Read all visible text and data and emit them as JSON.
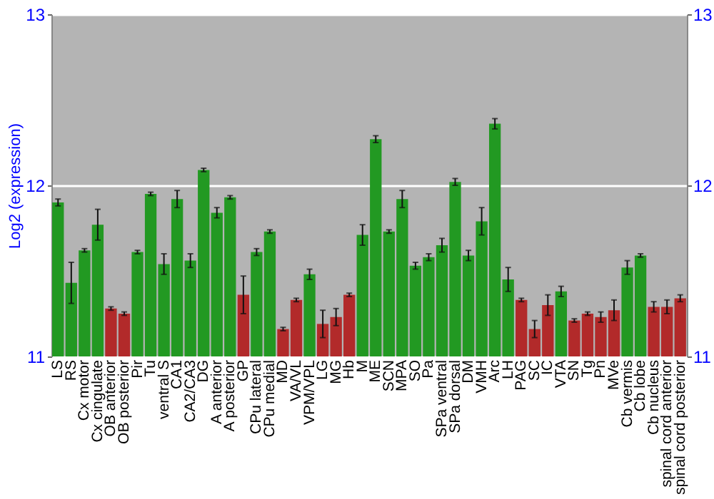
{
  "chart_data": {
    "type": "bar",
    "ylabel": "Log2 (expression)",
    "categories": [
      "LS",
      "RS",
      "Cx motor",
      "Cx cingulate",
      "OB anterior",
      "OB posterior",
      "Pir",
      "Tu",
      "ventral S",
      "CA1",
      "CA2/CA3",
      "DG",
      "A anterior",
      "A posterior",
      "GP",
      "CPu lateral",
      "CPu medial",
      "MD",
      "VA/VL",
      "VPM/VPL",
      "LG",
      "MG",
      "Hb",
      "M",
      "ME",
      "SCN",
      "MPA",
      "SO",
      "Pa",
      "SPa ventral",
      "SPa dorsal",
      "DM",
      "VMH",
      "Arc",
      "LH",
      "PAG",
      "SC",
      "IC",
      "VTA",
      "SN",
      "Tg",
      "Pn",
      "MVe",
      "Cb vermis",
      "Cb lobe",
      "Cb nucleus",
      "spinal cord anterior",
      "spinal cord posterior"
    ],
    "values": [
      11.9,
      11.43,
      11.62,
      11.77,
      11.28,
      11.25,
      11.61,
      11.95,
      11.54,
      11.92,
      11.56,
      12.09,
      11.84,
      11.93,
      11.36,
      11.61,
      11.73,
      11.16,
      11.33,
      11.48,
      11.19,
      11.23,
      11.36,
      11.71,
      12.27,
      11.73,
      11.92,
      11.53,
      11.58,
      11.65,
      12.02,
      11.59,
      11.79,
      12.36,
      11.45,
      11.33,
      11.16,
      11.3,
      11.38,
      11.21,
      11.25,
      11.23,
      11.27,
      11.52,
      11.59,
      11.29,
      11.29,
      11.34
    ],
    "errors": [
      0.02,
      0.12,
      0.01,
      0.09,
      0.01,
      0.01,
      0.01,
      0.01,
      0.06,
      0.05,
      0.04,
      0.01,
      0.03,
      0.01,
      0.11,
      0.02,
      0.01,
      0.01,
      0.01,
      0.03,
      0.08,
      0.05,
      0.01,
      0.06,
      0.02,
      0.01,
      0.05,
      0.02,
      0.02,
      0.04,
      0.02,
      0.03,
      0.08,
      0.03,
      0.07,
      0.01,
      0.05,
      0.06,
      0.03,
      0.01,
      0.01,
      0.03,
      0.06,
      0.04,
      0.01,
      0.03,
      0.04,
      0.02
    ],
    "colors": [
      "#229922",
      "#229922",
      "#229922",
      "#229922",
      "#b22a2a",
      "#b22a2a",
      "#229922",
      "#229922",
      "#229922",
      "#229922",
      "#229922",
      "#229922",
      "#229922",
      "#229922",
      "#b22a2a",
      "#229922",
      "#229922",
      "#b22a2a",
      "#b22a2a",
      "#229922",
      "#b22a2a",
      "#b22a2a",
      "#b22a2a",
      "#229922",
      "#229922",
      "#229922",
      "#229922",
      "#229922",
      "#229922",
      "#229922",
      "#229922",
      "#229922",
      "#229922",
      "#229922",
      "#229922",
      "#b22a2a",
      "#b22a2a",
      "#b22a2a",
      "#229922",
      "#b22a2a",
      "#b22a2a",
      "#b22a2a",
      "#b22a2a",
      "#229922",
      "#229922",
      "#b22a2a",
      "#b22a2a",
      "#b22a2a"
    ],
    "ylim": [
      11,
      13
    ],
    "yticks": [
      11,
      12,
      13
    ],
    "y2lim": [
      11,
      13
    ],
    "y2ticks": [
      11,
      12,
      13
    ],
    "grid": "y"
  }
}
